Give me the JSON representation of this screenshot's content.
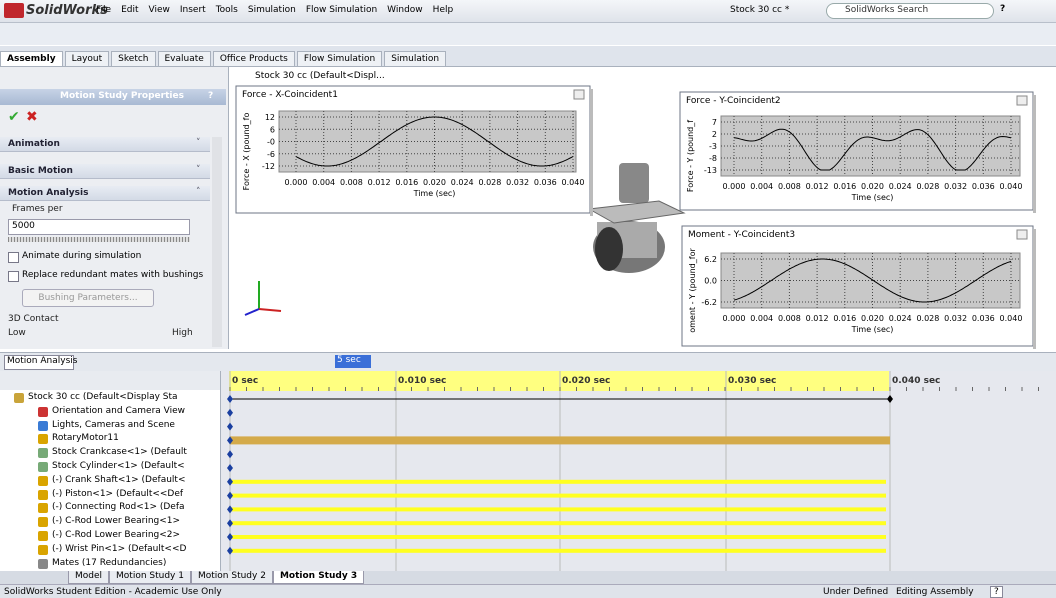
{
  "title_bar": {
    "app": "SolidWorks",
    "menu": [
      "File",
      "Edit",
      "View",
      "Insert",
      "Tools",
      "Simulation",
      "Flow Simulation",
      "Window",
      "Help"
    ],
    "document": "Stock 30 cc *",
    "search": "SolidWorks Search",
    "help": "?"
  },
  "tabs": [
    "Assembly",
    "Layout",
    "Sketch",
    "Evaluate",
    "Office Products",
    "Flow Simulation",
    "Simulation"
  ],
  "property_manager": {
    "title": "Motion Study Properties",
    "help": "?",
    "sections": [
      "Animation",
      "Basic Motion",
      "Motion Analysis"
    ],
    "frames_label": "Frames per",
    "frames_value": "5000",
    "checkboxes": [
      "Animate during simulation",
      "Replace redundant mates with bushings"
    ],
    "button": "Bushing Parameters...",
    "contact_label": "3D Contact",
    "low": "Low",
    "high": "High"
  },
  "graphics": {
    "tree_root": "Stock 30 cc  (Default<Displ...",
    "plots": [
      {
        "title": "Force - X-Coincident1",
        "y_label": "Force - X (pound_fo",
        "yticks": [
          "12",
          "6",
          "-0",
          "-6",
          "-12"
        ],
        "xticks": [
          "0.000",
          "0.004",
          "0.008",
          "0.012",
          "0.016",
          "0.020",
          "0.024",
          "0.028",
          "0.032",
          "0.036",
          "0.040"
        ],
        "x_label": "Time (sec)"
      },
      {
        "title": "Force - Y-Coincident2",
        "y_label": "Force - Y (pound_f",
        "yticks": [
          "7",
          "2",
          "-3",
          "-8",
          "-13"
        ],
        "xticks": [
          "0.000",
          "0.004",
          "0.008",
          "0.012",
          "0.016",
          "0.020",
          "0.024",
          "0.028",
          "0.032",
          "0.036",
          "0.040"
        ],
        "x_label": "Time (sec)"
      },
      {
        "title": "Moment - Y-Coincident3",
        "y_label": "oment - Y (pound_for",
        "yticks": [
          "6.2",
          "0.0",
          "-6.2"
        ],
        "xticks": [
          "0.000",
          "0.004",
          "0.008",
          "0.012",
          "0.016",
          "0.020",
          "0.024",
          "0.028",
          "0.032",
          "0.036",
          "0.040"
        ],
        "x_label": "Time (sec)"
      }
    ]
  },
  "timeline": {
    "study_type": "Motion Analysis",
    "duration": "5 sec",
    "time_labels": [
      "0 sec",
      "0.010 sec",
      "0.020 sec",
      "0.030 sec",
      "0.040 sec"
    ],
    "tree": [
      "Stock 30 cc  (Default<Display Sta",
      "Orientation and Camera View",
      "Lights, Cameras and Scene",
      "RotaryMotor11",
      "Stock Crankcase<1> (Default",
      "Stock Cylinder<1> (Default<",
      "(-) Crank Shaft<1> (Default<",
      "(-) Piston<1> (Default<<Def",
      "(-) Connecting Rod<1> (Defa",
      "(-) C-Rod Lower Bearing<1>",
      "(-) C-Rod Lower Bearing<2>",
      "(-) Wrist Pin<1> (Default<<D",
      "Mates (17 Redundancies)"
    ]
  },
  "study_tabs": [
    "Model",
    "Motion Study 1",
    "Motion Study 2",
    "Motion Study 3"
  ],
  "status": {
    "edition": "SolidWorks Student Edition - Academic Use Only",
    "state": "Under Defined",
    "mode": "Editing Assembly",
    "help": "?"
  }
}
